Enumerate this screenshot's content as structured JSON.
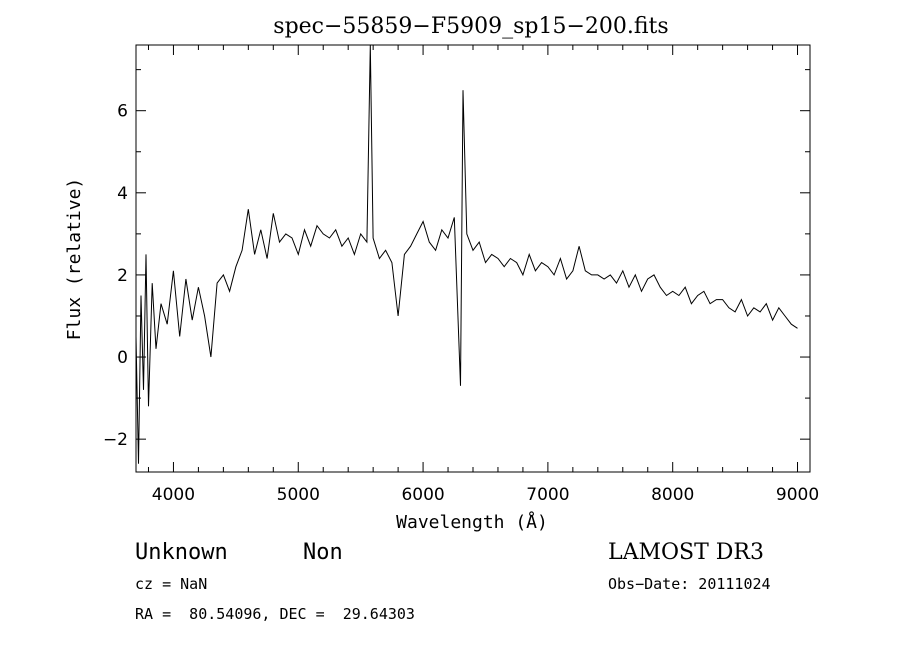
{
  "chart_data": {
    "type": "line",
    "title": "spec−55859−F5909_sp15−200.fits",
    "xlabel": "Wavelength (Å)",
    "ylabel": "Flux (relative)",
    "xlim": [
      3700,
      9100
    ],
    "ylim": [
      -2.8,
      7.6
    ],
    "x_ticks": [
      4000,
      5000,
      6000,
      7000,
      8000,
      9000
    ],
    "x_tick_labels": [
      "4000",
      "5000",
      "6000",
      "7000",
      "8000",
      "9000"
    ],
    "y_ticks": [
      -2,
      0,
      2,
      4,
      6
    ],
    "y_tick_labels": [
      "−2",
      "0",
      "2",
      "4",
      "6"
    ],
    "grid": false,
    "series": [
      {
        "color": "#000000",
        "x": [
          3700,
          3720,
          3740,
          3760,
          3780,
          3800,
          3830,
          3860,
          3900,
          3950,
          4000,
          4050,
          4100,
          4150,
          4200,
          4250,
          4300,
          4350,
          4400,
          4450,
          4500,
          4550,
          4600,
          4650,
          4700,
          4750,
          4800,
          4850,
          4900,
          4950,
          5000,
          5050,
          5100,
          5150,
          5200,
          5250,
          5300,
          5350,
          5400,
          5450,
          5500,
          5550,
          5577,
          5600,
          5650,
          5700,
          5750,
          5800,
          5850,
          5900,
          5950,
          6000,
          6050,
          6100,
          6150,
          6200,
          6250,
          6300,
          6320,
          6350,
          6400,
          6450,
          6500,
          6550,
          6600,
          6650,
          6700,
          6750,
          6800,
          6850,
          6900,
          6950,
          7000,
          7050,
          7100,
          7150,
          7200,
          7250,
          7300,
          7350,
          7400,
          7450,
          7500,
          7550,
          7600,
          7650,
          7700,
          7750,
          7800,
          7850,
          7900,
          7950,
          8000,
          8050,
          8100,
          8150,
          8200,
          8250,
          8300,
          8350,
          8400,
          8450,
          8500,
          8550,
          8600,
          8650,
          8700,
          8750,
          8800,
          8850,
          8900,
          8950,
          9000
        ],
        "y": [
          0.5,
          -2.6,
          1.5,
          -0.8,
          2.5,
          -1.2,
          1.8,
          0.2,
          1.3,
          0.8,
          2.1,
          0.5,
          1.9,
          0.9,
          1.7,
          1.0,
          0.0,
          1.8,
          2.0,
          1.6,
          2.2,
          2.6,
          3.6,
          2.5,
          3.1,
          2.4,
          3.5,
          2.8,
          3.0,
          2.9,
          2.5,
          3.1,
          2.7,
          3.2,
          3.0,
          2.9,
          3.1,
          2.7,
          2.9,
          2.5,
          3.0,
          2.8,
          7.6,
          2.9,
          2.4,
          2.6,
          2.3,
          1.0,
          2.5,
          2.7,
          3.0,
          3.3,
          2.8,
          2.6,
          3.1,
          2.9,
          3.4,
          -0.7,
          6.5,
          3.0,
          2.6,
          2.8,
          2.3,
          2.5,
          2.4,
          2.2,
          2.4,
          2.3,
          2.0,
          2.5,
          2.1,
          2.3,
          2.2,
          2.0,
          2.4,
          1.9,
          2.1,
          2.7,
          2.1,
          2.0,
          2.0,
          1.9,
          2.0,
          1.8,
          2.1,
          1.7,
          2.0,
          1.6,
          1.9,
          2.0,
          1.7,
          1.5,
          1.6,
          1.5,
          1.7,
          1.3,
          1.5,
          1.6,
          1.3,
          1.4,
          1.4,
          1.2,
          1.1,
          1.4,
          1.0,
          1.2,
          1.1,
          1.3,
          0.9,
          1.2,
          1.0,
          0.8,
          0.7
        ]
      }
    ]
  },
  "footer": {
    "class_label": "Unknown",
    "subclass_label": "Non",
    "survey_label": "LAMOST DR3",
    "cz_label": "cz = NaN",
    "obs_date_label": "Obs−Date: 20111024",
    "coords_label": "RA =  80.54096, DEC =  29.64303"
  }
}
